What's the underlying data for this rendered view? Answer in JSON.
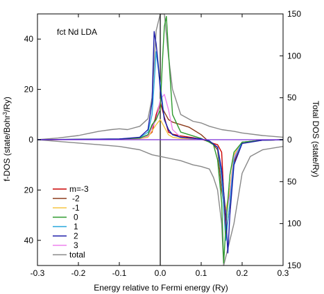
{
  "chart_data": {
    "type": "line",
    "annotation": "fct Nd LDA",
    "xlabel": "Energy relative to Fermi energy (Ry)",
    "ylabel_left_prefix": "f-DOS (state/Bohr",
    "ylabel_left_sup": "3",
    "ylabel_left_suffix": "/Ry)",
    "ylabel_right": "Total DOS (state/Ry)",
    "xlim": [
      -0.3,
      0.3
    ],
    "ylim_left": [
      -50,
      50
    ],
    "ylim_right": [
      -150,
      150
    ],
    "grid": false,
    "legend_position": "lower-left",
    "x_ticks": [
      -0.3,
      -0.2,
      -0.1,
      0.0,
      0.1,
      0.2,
      0.3
    ],
    "x_tick_labels": [
      "-0.3",
      "-0.2",
      "-0.1",
      "0.0",
      "0.1",
      "0.2",
      "0.3"
    ],
    "y_left_ticks": [
      40,
      20,
      0,
      -20,
      -40
    ],
    "y_left_tick_labels": [
      "40",
      "20",
      "0",
      "20",
      "40"
    ],
    "y_right_ticks": [
      150,
      100,
      50,
      0,
      -50,
      -100,
      -150
    ],
    "y_right_tick_labels": [
      "150",
      "100",
      "50",
      "0",
      "50",
      "100",
      "150"
    ],
    "series": [
      {
        "name": "m=-3",
        "color": "#cc0000",
        "axis": "left",
        "x": [
          -0.3,
          -0.1,
          -0.05,
          -0.03,
          -0.02,
          -0.01,
          0.0,
          0.01,
          0.02,
          0.03,
          0.05,
          0.08,
          0.1,
          0.12,
          0.13,
          0.14,
          0.15,
          0.16,
          0.17,
          0.18,
          0.2,
          0.25,
          0.3
        ],
        "y": [
          0.0,
          0.2,
          0.6,
          1.5,
          3.0,
          10.0,
          15.0,
          9.0,
          3.0,
          2.2,
          1.5,
          0.8,
          0.2,
          -0.8,
          -1.5,
          -2.0,
          -5.0,
          -38.0,
          -26.0,
          -9.0,
          -1.0,
          -0.2,
          0.0
        ]
      },
      {
        "name": "-2",
        "color": "#8b3a1a",
        "axis": "left",
        "x": [
          -0.3,
          -0.1,
          -0.05,
          -0.03,
          -0.01,
          0.0,
          0.01,
          0.02,
          0.03,
          0.05,
          0.07,
          0.08,
          0.1,
          0.12,
          0.13,
          0.14,
          0.15,
          0.16,
          0.17,
          0.18,
          0.2,
          0.25,
          0.3
        ],
        "y": [
          0.0,
          0.2,
          0.5,
          1.5,
          9.0,
          14.0,
          11.0,
          8.0,
          7.0,
          6.0,
          5.0,
          4.0,
          2.0,
          -1.0,
          -2.0,
          -4.0,
          -20.0,
          -30.0,
          -20.0,
          -7.0,
          -1.0,
          -0.2,
          0.0
        ]
      },
      {
        "name": "-1",
        "color": "#f5c542",
        "axis": "left",
        "x": [
          -0.3,
          -0.1,
          -0.05,
          -0.03,
          -0.01,
          0.0,
          0.01,
          0.02,
          0.03,
          0.05,
          0.1,
          0.12,
          0.14,
          0.15,
          0.16,
          0.17,
          0.18,
          0.2,
          0.25,
          0.3
        ],
        "y": [
          0.0,
          0.2,
          0.4,
          1.0,
          6.0,
          8.0,
          5.0,
          2.0,
          1.0,
          0.5,
          0.2,
          -0.5,
          -3.0,
          -15.0,
          -28.0,
          -20.0,
          -6.0,
          -1.0,
          -0.2,
          0.0
        ]
      },
      {
        "name": "0",
        "color": "#2e9a2e",
        "axis": "left",
        "x": [
          -0.3,
          -0.1,
          -0.05,
          -0.03,
          -0.02,
          -0.01,
          0.0,
          0.005,
          0.01,
          0.015,
          0.02,
          0.03,
          0.05,
          0.1,
          0.12,
          0.13,
          0.14,
          0.15,
          0.155,
          0.16,
          0.17,
          0.18,
          0.2,
          0.25,
          0.3
        ],
        "y": [
          0.0,
          0.3,
          0.6,
          2.0,
          6.0,
          8.0,
          12.0,
          30.0,
          45.0,
          49.0,
          35.0,
          10.0,
          3.0,
          0.5,
          -1.0,
          -2.0,
          -8.0,
          -25.0,
          -49.0,
          -35.0,
          -14.0,
          -5.0,
          -1.0,
          -0.2,
          0.0
        ]
      },
      {
        "name": "1",
        "color": "#2aa9dc",
        "axis": "left",
        "x": [
          -0.3,
          -0.1,
          -0.05,
          -0.03,
          -0.02,
          -0.01,
          0.0,
          0.01,
          0.02,
          0.03,
          0.05,
          0.1,
          0.12,
          0.14,
          0.15,
          0.16,
          0.17,
          0.18,
          0.2,
          0.25,
          0.3
        ],
        "y": [
          0.0,
          0.3,
          0.8,
          3.0,
          10.0,
          35.0,
          22.0,
          8.0,
          4.0,
          2.0,
          1.0,
          0.3,
          -0.5,
          -3.0,
          -15.0,
          -40.0,
          -25.0,
          -8.0,
          -1.0,
          -0.2,
          0.0
        ]
      },
      {
        "name": "2",
        "color": "#1a1aa8",
        "axis": "left",
        "x": [
          -0.3,
          -0.1,
          -0.05,
          -0.03,
          -0.02,
          -0.015,
          -0.01,
          -0.005,
          0.0,
          0.01,
          0.02,
          0.03,
          0.05,
          0.1,
          0.12,
          0.14,
          0.15,
          0.16,
          0.165,
          0.17,
          0.18,
          0.2,
          0.25,
          0.3
        ],
        "y": [
          0.0,
          0.3,
          1.0,
          4.0,
          15.0,
          43.0,
          38.0,
          30.0,
          20.0,
          8.0,
          4.0,
          2.0,
          1.0,
          0.3,
          -0.5,
          -3.0,
          -12.0,
          -30.0,
          -45.0,
          -30.0,
          -10.0,
          -1.5,
          -0.2,
          0.0
        ]
      },
      {
        "name": "3",
        "color": "#ee82ee",
        "axis": "left",
        "x": [
          -0.3,
          -0.1,
          -0.05,
          -0.03,
          -0.01,
          0.0,
          0.01,
          0.02,
          0.03,
          0.05,
          0.1,
          0.12,
          0.14,
          0.15,
          0.16,
          0.17,
          0.18,
          0.2,
          0.25,
          0.3
        ],
        "y": [
          0.0,
          0.2,
          0.5,
          1.5,
          8.0,
          16.0,
          18.0,
          12.0,
          4.0,
          1.0,
          0.2,
          -0.5,
          -3.0,
          -12.0,
          -30.0,
          -22.0,
          -7.0,
          -1.0,
          -0.2,
          0.0
        ]
      },
      {
        "name": "total",
        "color": "#888888",
        "axis": "right",
        "pair": "up",
        "x": [
          -0.3,
          -0.25,
          -0.2,
          -0.18,
          -0.15,
          -0.12,
          -0.1,
          -0.08,
          -0.05,
          -0.03,
          -0.02,
          -0.01,
          0.0,
          0.01,
          0.02,
          0.03,
          0.05,
          0.08,
          0.1,
          0.12,
          0.15,
          0.18,
          0.2,
          0.25,
          0.3
        ],
        "y": [
          0.0,
          2.0,
          5.0,
          7.0,
          10.0,
          12.0,
          13.0,
          12.0,
          16.0,
          25.0,
          50.0,
          130.0,
          150.0,
          150.0,
          100.0,
          60.0,
          30.0,
          22.0,
          20.0,
          16.0,
          12.0,
          10.0,
          8.0,
          5.0,
          3.0
        ]
      },
      {
        "name": "total_down",
        "color": "#888888",
        "axis": "right",
        "pair": "down",
        "x": [
          -0.3,
          -0.25,
          -0.2,
          -0.15,
          -0.1,
          -0.05,
          -0.02,
          0.0,
          0.02,
          0.05,
          0.08,
          0.1,
          0.12,
          0.13,
          0.14,
          0.15,
          0.155,
          0.16,
          0.17,
          0.18,
          0.19,
          0.2,
          0.22,
          0.25,
          0.3
        ],
        "y": [
          0.0,
          -2.0,
          -4.0,
          -6.0,
          -8.0,
          -12.0,
          -18.0,
          -20.0,
          -22.0,
          -25.0,
          -30.0,
          -32.0,
          -35.0,
          -45.0,
          -60.0,
          -100.0,
          -150.0,
          -140.0,
          -120.0,
          -100.0,
          -70.0,
          -40.0,
          -20.0,
          -12.0,
          -8.0
        ]
      },
      {
        "name": "zero",
        "color": "#7a2cd6",
        "axis": "left",
        "pair": "zero",
        "x": [
          -0.3,
          0.3
        ],
        "y": [
          0.0,
          0.0
        ]
      }
    ],
    "legend": [
      "m=-3",
      "-2",
      "-1",
      "0",
      "1",
      "2",
      "3",
      "total"
    ],
    "fermi_line_x": 0.0
  }
}
